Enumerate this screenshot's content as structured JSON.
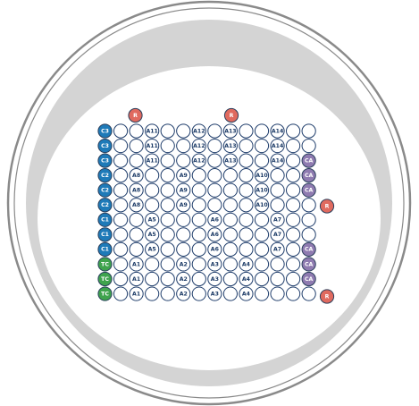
{
  "colors": {
    "outer_ring": "#8a8a8a",
    "plate_fill": "#ffffff",
    "inner_band": "#d4d4d4",
    "well_stroke": "#1f3d6b",
    "well_fill": "#ffffff",
    "C_blue": "#1e7ab8",
    "TC_green": "#3fa34d",
    "CA_purple": "#8f7bb0",
    "R_red": "#e06a5f"
  },
  "markers": [
    {
      "label": "R",
      "type": "R"
    },
    {
      "label": "R",
      "type": "R"
    },
    {
      "label": "R",
      "type": "R"
    },
    {
      "label": "R",
      "type": "R"
    }
  ],
  "grid": {
    "rows": [
      [
        "C3",
        "",
        "",
        "A11",
        "",
        "",
        "A12",
        "",
        "A13",
        "",
        "",
        "A14",
        "",
        ""
      ],
      [
        "C3",
        "",
        "",
        "A11",
        "",
        "",
        "A12",
        "",
        "A13",
        "",
        "",
        "A14",
        "",
        ""
      ],
      [
        "C3",
        "",
        "",
        "A11",
        "",
        "",
        "A12",
        "",
        "A13",
        "",
        "",
        "A14",
        "",
        "CA"
      ],
      [
        "C2",
        "",
        "A8",
        "",
        "",
        "A9",
        "",
        "",
        "",
        "",
        "A10",
        "",
        "",
        "CA"
      ],
      [
        "C2",
        "",
        "A8",
        "",
        "",
        "A9",
        "",
        "",
        "",
        "",
        "A10",
        "",
        "",
        "CA"
      ],
      [
        "C2",
        "",
        "A8",
        "",
        "",
        "A9",
        "",
        "",
        "",
        "",
        "A10",
        "",
        "",
        ""
      ],
      [
        "C1",
        "",
        "",
        "A5",
        "",
        "",
        "",
        "A6",
        "",
        "",
        "",
        "A7",
        "",
        ""
      ],
      [
        "C1",
        "",
        "",
        "A5",
        "",
        "",
        "",
        "A6",
        "",
        "",
        "",
        "A7",
        "",
        ""
      ],
      [
        "C1",
        "",
        "",
        "A5",
        "",
        "",
        "",
        "A6",
        "",
        "",
        "",
        "A7",
        "",
        "CA"
      ],
      [
        "TC",
        "",
        "A1",
        "",
        "",
        "A2",
        "",
        "A3",
        "",
        "A4",
        "",
        "",
        "",
        "CA"
      ],
      [
        "TC",
        "",
        "A1",
        "",
        "",
        "A2",
        "",
        "A3",
        "",
        "A4",
        "",
        "",
        "",
        "CA"
      ],
      [
        "TC",
        "",
        "A1",
        "",
        "",
        "A2",
        "",
        "A3",
        "",
        "A4",
        "",
        "",
        "",
        ""
      ]
    ]
  }
}
